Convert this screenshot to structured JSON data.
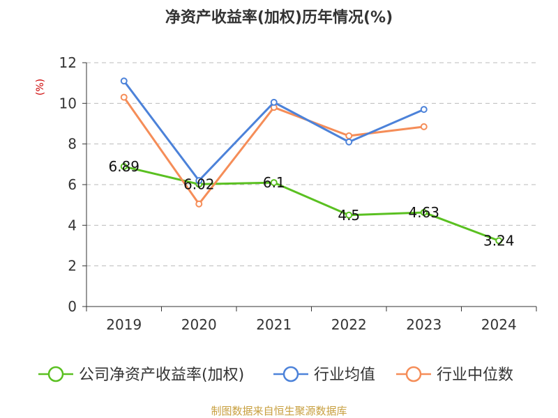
{
  "chart_data": {
    "type": "line",
    "title": "净资产收益率(加权)历年情况(%)",
    "ylabel": "(%)",
    "xlabel": "",
    "categories": [
      "2019",
      "2020",
      "2021",
      "2022",
      "2023",
      "2024"
    ],
    "ylim": [
      0,
      12
    ],
    "yticks": [
      0,
      2,
      4,
      6,
      8,
      10,
      12
    ],
    "grid": true,
    "legend_position": "bottom",
    "series": [
      {
        "name": "公司净资产收益率(加权)",
        "color": "#5ac021",
        "values": [
          6.89,
          6.02,
          6.1,
          4.5,
          4.63,
          3.24
        ],
        "labels": [
          "6.89",
          "6.02",
          "6.1",
          "4.5",
          "4.63",
          "3.24"
        ]
      },
      {
        "name": "行业均值",
        "color": "#4c82d9",
        "values": [
          11.1,
          6.2,
          10.05,
          8.1,
          9.7,
          null
        ]
      },
      {
        "name": "行业中位数",
        "color": "#f58d58",
        "values": [
          10.3,
          5.05,
          9.8,
          8.4,
          8.85,
          null
        ]
      }
    ],
    "source": "制图数据来自恒生聚源数据库"
  }
}
